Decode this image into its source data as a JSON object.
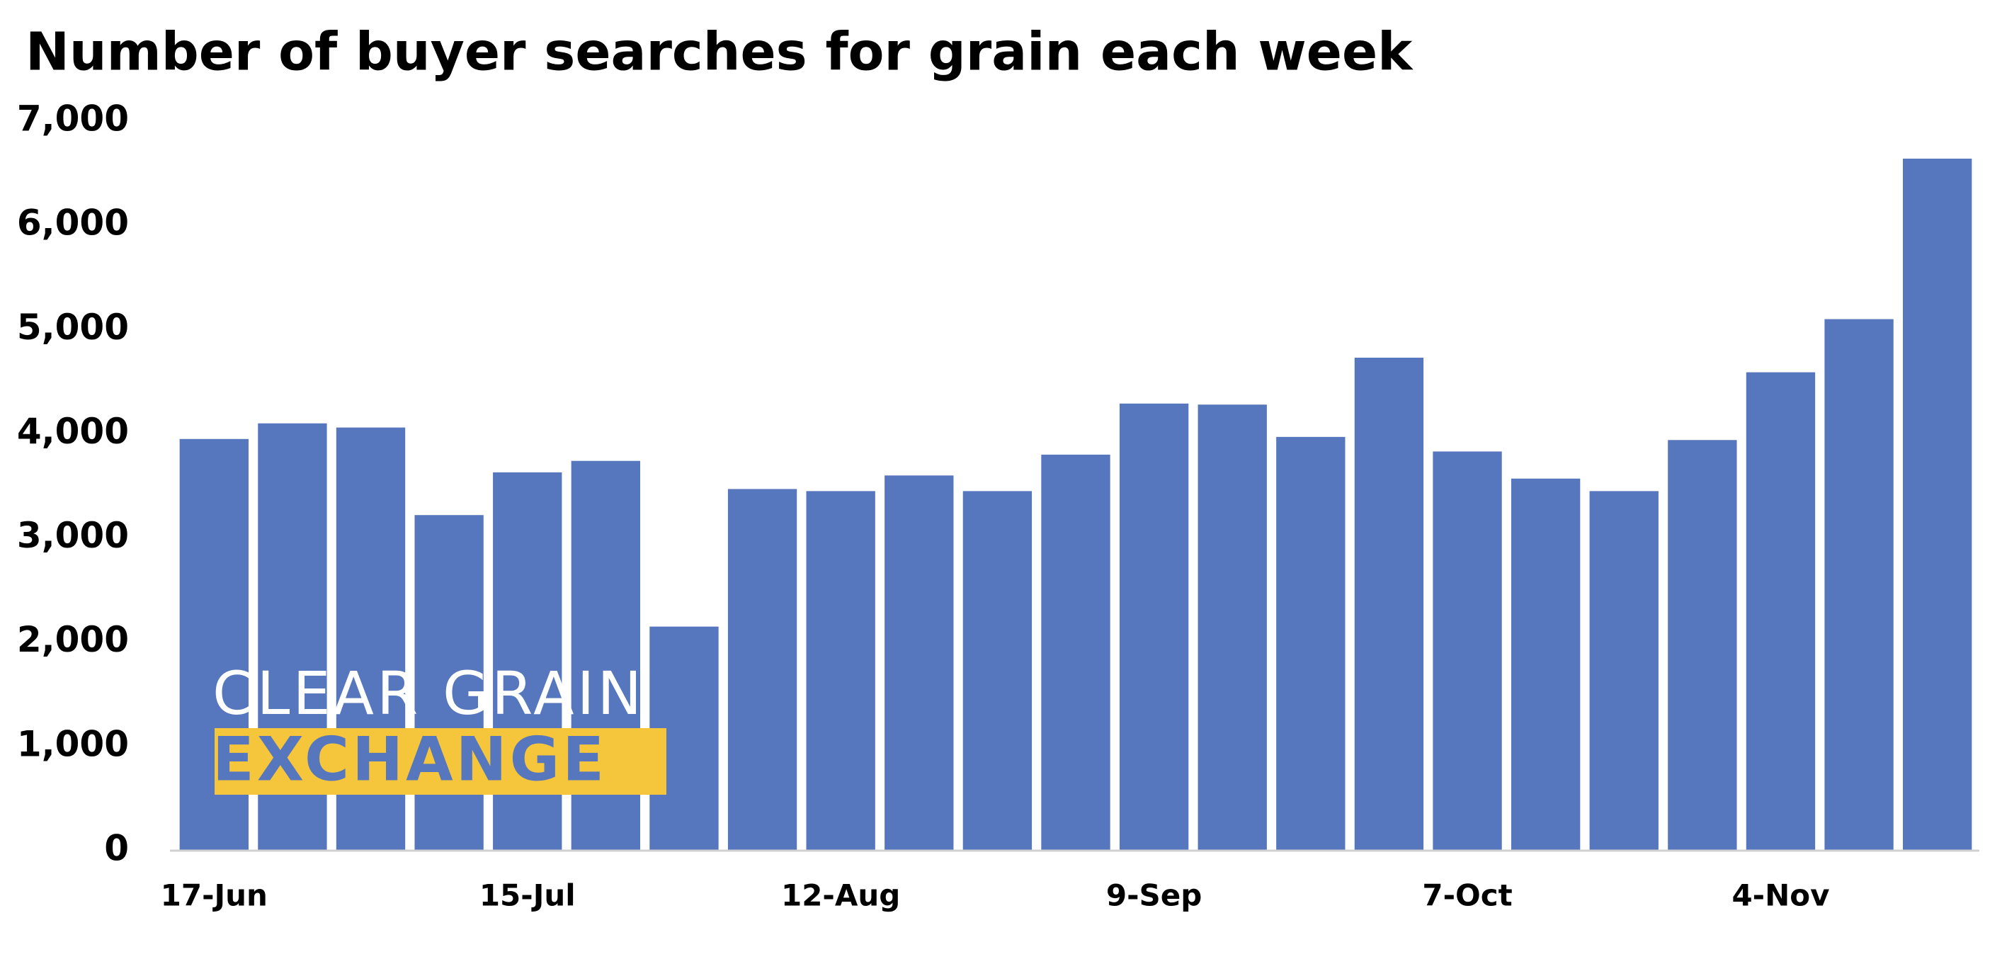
{
  "chart_data": {
    "type": "bar",
    "title": "Number of buyer searches for grain each week",
    "categories": [
      "17-Jun",
      null,
      null,
      null,
      "15-Jul",
      null,
      null,
      null,
      "12-Aug",
      null,
      null,
      null,
      "9-Sep",
      null,
      null,
      null,
      "7-Oct",
      null,
      null,
      null,
      "4-Nov",
      null,
      null
    ],
    "values": [
      3950,
      4100,
      4060,
      3220,
      3630,
      3740,
      2150,
      3470,
      3450,
      3600,
      3450,
      3800,
      4290,
      4280,
      3970,
      4730,
      3830,
      3570,
      3450,
      3940,
      4590,
      5100,
      6640
    ],
    "color": "#5677bd",
    "ylim": [
      0,
      7000
    ],
    "yticks": [
      0,
      {
        "value": 1000,
        "label": "1,000"
      },
      {
        "value": 2000,
        "label": "2,000"
      },
      {
        "value": 3000,
        "label": "3,000"
      },
      {
        "value": 4000,
        "label": "4,000"
      },
      {
        "value": 5000,
        "label": "5,000"
      },
      {
        "value": 6000,
        "label": "6,000"
      },
      {
        "value": 7000,
        "label": "7,000"
      }
    ],
    "grid": false
  },
  "logo": {
    "line1": "CLEAR GRAIN",
    "line2": "EXCHANGE"
  }
}
